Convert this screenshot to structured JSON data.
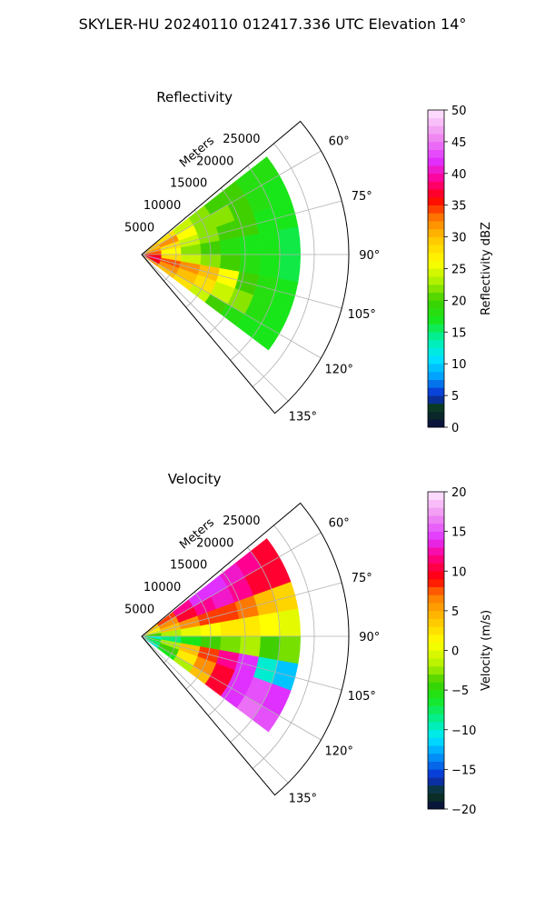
{
  "suptitle": "SKYLER-HU  20240110  012417.336 UTC Elevation 14°",
  "chart_data": [
    {
      "type": "heatmap",
      "title": "Reflectivity",
      "projection": "polar-sector",
      "theta_ticks": [
        "60°",
        "75°",
        "90°",
        "105°",
        "120°",
        "135°"
      ],
      "theta_values": [
        60,
        75,
        90,
        105,
        120,
        135
      ],
      "theta_range": [
        50,
        140
      ],
      "r_label": "Meters",
      "r_ticks": [
        "5000",
        "10000",
        "15000",
        "20000",
        "25000"
      ],
      "r_values": [
        5000,
        10000,
        15000,
        20000,
        25000
      ],
      "r_max": 30000,
      "grid": true,
      "colorbar": {
        "label": "Reflectivity dBZ",
        "range": [
          0,
          50
        ],
        "ticks": [
          "0",
          "5",
          "10",
          "15",
          "20",
          "25",
          "30",
          "35",
          "40",
          "45",
          "50"
        ],
        "tick_values": [
          0,
          5,
          10,
          15,
          20,
          25,
          30,
          35,
          40,
          45,
          50
        ],
        "stops": [
          {
            "v": 0,
            "c": "#0b0b45"
          },
          {
            "v": 3,
            "c": "#0a3a1a"
          },
          {
            "v": 5,
            "c": "#0a2bd0"
          },
          {
            "v": 8,
            "c": "#00a0ff"
          },
          {
            "v": 11,
            "c": "#00e8ff"
          },
          {
            "v": 14,
            "c": "#00f0a0"
          },
          {
            "v": 17,
            "c": "#19e619"
          },
          {
            "v": 20,
            "c": "#40d000"
          },
          {
            "v": 23,
            "c": "#aef000"
          },
          {
            "v": 26,
            "c": "#ffff00"
          },
          {
            "v": 30,
            "c": "#ffc000"
          },
          {
            "v": 33,
            "c": "#ff7800"
          },
          {
            "v": 36,
            "c": "#ff0000"
          },
          {
            "v": 39,
            "c": "#ff0090"
          },
          {
            "v": 42,
            "c": "#e030ff"
          },
          {
            "v": 46,
            "c": "#f090f0"
          },
          {
            "v": 50,
            "c": "#ffe8ff"
          }
        ]
      },
      "data_extent": {
        "theta": [
          52,
          127
        ],
        "r_max": 23000
      },
      "data_rows": [
        {
          "theta": 55,
          "values": [
            30,
            28,
            24,
            22,
            20,
            20,
            18,
            18
          ]
        },
        {
          "theta": 65,
          "values": [
            30,
            32,
            26,
            22,
            22,
            20,
            18,
            17
          ]
        },
        {
          "theta": 75,
          "values": [
            32,
            28,
            24,
            22,
            20,
            20,
            17,
            17
          ]
        },
        {
          "theta": 85,
          "values": [
            34,
            26,
            22,
            20,
            18,
            17,
            17,
            16
          ]
        },
        {
          "theta": 95,
          "values": [
            36,
            28,
            24,
            22,
            20,
            18,
            17,
            16
          ]
        },
        {
          "theta": 105,
          "values": [
            38,
            34,
            32,
            30,
            26,
            20,
            18,
            17
          ]
        },
        {
          "theta": 115,
          "values": [
            36,
            32,
            30,
            28,
            24,
            22,
            18,
            17
          ]
        },
        {
          "theta": 125,
          "values": [
            32,
            30,
            28,
            24,
            20,
            18,
            17,
            17
          ]
        }
      ]
    },
    {
      "type": "heatmap",
      "title": "Velocity",
      "projection": "polar-sector",
      "theta_ticks": [
        "60°",
        "75°",
        "90°",
        "105°",
        "120°",
        "135°"
      ],
      "theta_values": [
        60,
        75,
        90,
        105,
        120,
        135
      ],
      "theta_range": [
        50,
        140
      ],
      "r_label": "Meters",
      "r_ticks": [
        "5000",
        "10000",
        "15000",
        "20000",
        "25000"
      ],
      "r_values": [
        5000,
        10000,
        15000,
        20000,
        25000
      ],
      "r_max": 30000,
      "grid": true,
      "colorbar": {
        "label": "Velocity (m/s)",
        "range": [
          -20,
          20
        ],
        "ticks": [
          "−20",
          "−15",
          "−10",
          "−5",
          "0",
          "5",
          "10",
          "15",
          "20"
        ],
        "tick_values": [
          -20,
          -15,
          -10,
          -5,
          0,
          5,
          10,
          15,
          20
        ],
        "stops": [
          {
            "v": -20,
            "c": "#0b0b45"
          },
          {
            "v": -18,
            "c": "#0a3a1a"
          },
          {
            "v": -16,
            "c": "#0a2bd0"
          },
          {
            "v": -13,
            "c": "#00a0ff"
          },
          {
            "v": -11,
            "c": "#00e8ff"
          },
          {
            "v": -9,
            "c": "#00f0a0"
          },
          {
            "v": -6,
            "c": "#19e619"
          },
          {
            "v": -4,
            "c": "#40d000"
          },
          {
            "v": -2,
            "c": "#aef000"
          },
          {
            "v": 1,
            "c": "#ffff00"
          },
          {
            "v": 4,
            "c": "#ffc000"
          },
          {
            "v": 7,
            "c": "#ff7800"
          },
          {
            "v": 9,
            "c": "#ff0000"
          },
          {
            "v": 12,
            "c": "#ff0090"
          },
          {
            "v": 14,
            "c": "#e030ff"
          },
          {
            "v": 17,
            "c": "#f090f0"
          },
          {
            "v": 20,
            "c": "#ffe8ff"
          }
        ]
      },
      "data_extent": {
        "theta": [
          52,
          127
        ],
        "r_max": 23000
      },
      "data_rows": [
        {
          "theta": 55,
          "values": [
            4,
            8,
            12,
            14,
            14,
            13,
            12,
            10
          ]
        },
        {
          "theta": 65,
          "values": [
            2,
            6,
            10,
            12,
            13,
            12,
            10,
            10
          ]
        },
        {
          "theta": 75,
          "values": [
            0,
            4,
            6,
            8,
            8,
            7,
            4,
            3
          ]
        },
        {
          "theta": 85,
          "values": [
            -4,
            -2,
            0,
            1,
            2,
            2,
            1,
            0
          ]
        },
        {
          "theta": 95,
          "values": [
            -10,
            -8,
            -6,
            -4,
            -3,
            -2,
            -4,
            -3
          ]
        },
        {
          "theta": 105,
          "values": [
            -6,
            -2,
            4,
            8,
            12,
            14,
            -10,
            -12
          ]
        },
        {
          "theta": 115,
          "values": [
            -8,
            -4,
            2,
            6,
            10,
            14,
            15,
            14
          ]
        },
        {
          "theta": 125,
          "values": [
            -10,
            -6,
            -2,
            4,
            10,
            14,
            16,
            15
          ]
        }
      ]
    }
  ]
}
